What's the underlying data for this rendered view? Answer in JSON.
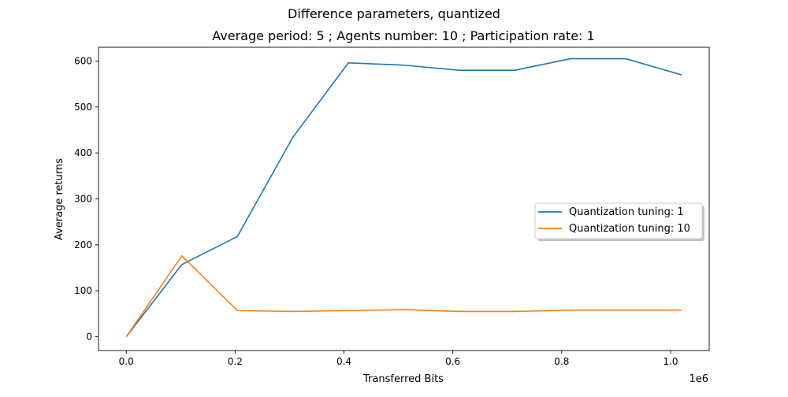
{
  "chart_data": {
    "type": "line",
    "suptitle": "Difference parameters, quantized",
    "title": "Average period: 5 ; Agents number: 10 ; Participation rate: 1",
    "xlabel": "Transferred Bits",
    "ylabel": "Average returns",
    "x_offset_label": "1e6",
    "xlim": [
      -0.051,
      1.071
    ],
    "ylim": [
      -30,
      630
    ],
    "x_ticks": [
      0.0,
      0.2,
      0.4,
      0.6,
      0.8,
      1.0
    ],
    "x_tick_labels": [
      "0.0",
      "0.2",
      "0.4",
      "0.6",
      "0.8",
      "1.0"
    ],
    "y_ticks": [
      0,
      100,
      200,
      300,
      400,
      500,
      600
    ],
    "y_tick_labels": [
      "0",
      "100",
      "200",
      "300",
      "400",
      "500",
      "600"
    ],
    "grid": false,
    "legend_position": "center-right",
    "series": [
      {
        "name": "Quantization tuning: 1",
        "color": "#1f77b4",
        "x": [
          0.0,
          0.102,
          0.204,
          0.306,
          0.408,
          0.51,
          0.612,
          0.714,
          0.816,
          0.918,
          1.02
        ],
        "y": [
          0,
          157,
          218,
          434,
          596,
          591,
          580,
          580,
          605,
          605,
          570
        ]
      },
      {
        "name": "Quantization tuning: 10",
        "color": "#ff7f0e",
        "x": [
          0.0,
          0.102,
          0.204,
          0.306,
          0.408,
          0.51,
          0.612,
          0.714,
          0.816,
          0.918,
          1.02
        ],
        "y": [
          0,
          176,
          57,
          55,
          57,
          59,
          55,
          55,
          58,
          58,
          58
        ]
      }
    ]
  }
}
